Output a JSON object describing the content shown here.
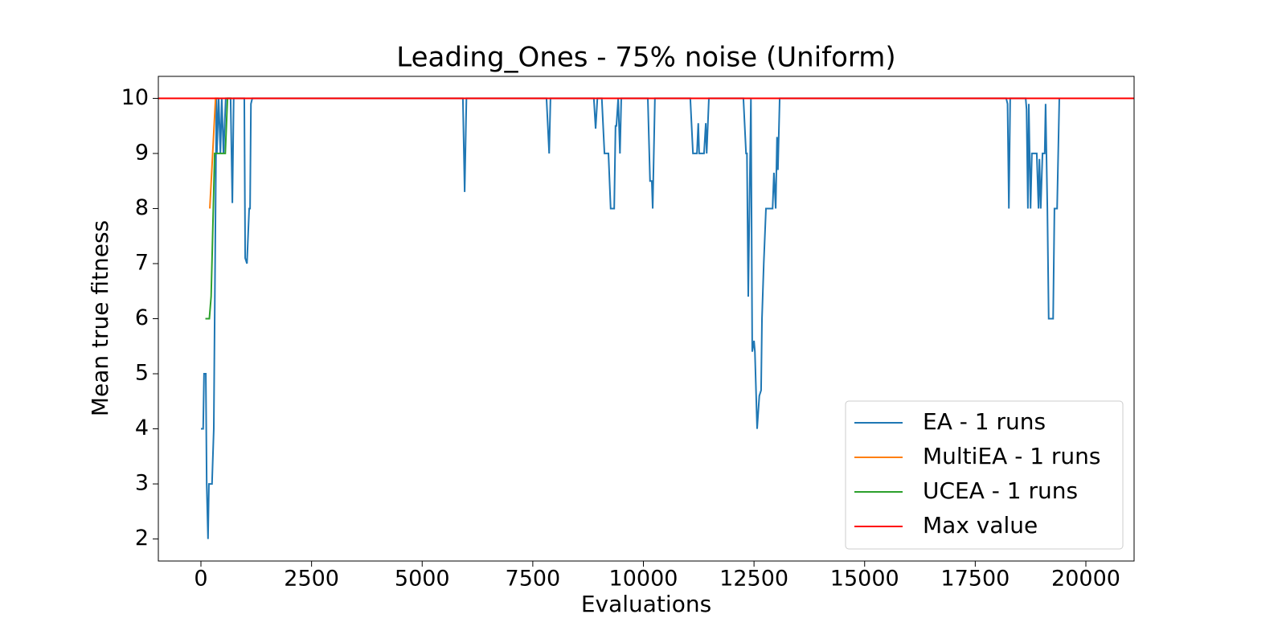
{
  "chart_data": {
    "type": "line",
    "title": "Leading_Ones - 75% noise (Uniform)",
    "x_label": "Evaluations",
    "y_label": "Mean true fitness",
    "xlim": [
      -963,
      21090
    ],
    "ylim": [
      1.6,
      10.4
    ],
    "xticks": [
      0,
      2500,
      5000,
      7500,
      10000,
      12500,
      15000,
      17500,
      20000
    ],
    "yticks": [
      2,
      3,
      4,
      5,
      6,
      7,
      8,
      9,
      10
    ],
    "legend": "lower right",
    "series": [
      {
        "name": "EA - 1 runs",
        "color": "#1f77b4",
        "x": [
          0,
          50,
          70,
          110,
          130,
          160,
          180,
          250,
          290,
          350,
          360,
          400,
          440,
          470,
          510,
          560,
          670,
          710,
          740,
          980,
          1000,
          1040,
          1090,
          1110,
          1130,
          1160,
          5920,
          5960,
          6000,
          7810,
          7870,
          7900,
          8880,
          8920,
          8960,
          9060,
          9120,
          9210,
          9260,
          9340,
          9370,
          9390,
          9430,
          9470,
          9500,
          10100,
          10150,
          10190,
          10210,
          10260,
          11060,
          11120,
          11210,
          11240,
          11260,
          11370,
          11410,
          11430,
          11480,
          12260,
          12320,
          12340,
          12370,
          12430,
          12460,
          12500,
          12520,
          12570,
          12620,
          12660,
          12680,
          12720,
          12770,
          12920,
          12950,
          12990,
          13020,
          13040,
          13080,
          18200,
          18230,
          18260,
          18290,
          18640,
          18660,
          18690,
          18710,
          18750,
          18780,
          18890,
          18930,
          18950,
          18980,
          19020,
          19070,
          19090,
          19130,
          19160,
          19260,
          19290,
          19350,
          19400
        ],
        "values": [
          4,
          4,
          5,
          5,
          3,
          2,
          3,
          3,
          4,
          10,
          9,
          10,
          9,
          10,
          9,
          10,
          10,
          8.1,
          10,
          10,
          7.1,
          7,
          8,
          8,
          9.9,
          10,
          10,
          8.3,
          10,
          10,
          9,
          10,
          10,
          9.45,
          10,
          10,
          9,
          9,
          8,
          8,
          9.5,
          9.5,
          10,
          9,
          10,
          10,
          8.5,
          8.5,
          8,
          10,
          10,
          9,
          9,
          9.55,
          9,
          9,
          9.55,
          9,
          10,
          10,
          9,
          9,
          6.4,
          10,
          5.4,
          5.6,
          5.4,
          4,
          4.6,
          4.7,
          6,
          7,
          8,
          8,
          8.65,
          8,
          9.3,
          8.7,
          10,
          10,
          9.9,
          8,
          10,
          10,
          9.8,
          8,
          9.9,
          8,
          9,
          9,
          8,
          8.9,
          8,
          9,
          9,
          9.9,
          8,
          6,
          6,
          8,
          8,
          10
        ]
      },
      {
        "name": "MultiEA - 1 runs",
        "color": "#ff7f0e",
        "x": [
          200,
          330,
          400
        ],
        "values": [
          8,
          10,
          10
        ]
      },
      {
        "name": "UCEA - 1 runs",
        "color": "#2ca02c",
        "x": [
          100,
          190,
          230,
          310,
          550,
          600,
          700
        ],
        "values": [
          6,
          6,
          6.4,
          9,
          9,
          10,
          10
        ]
      },
      {
        "name": "Max value",
        "color": "#ff0000",
        "y": 10
      }
    ]
  }
}
